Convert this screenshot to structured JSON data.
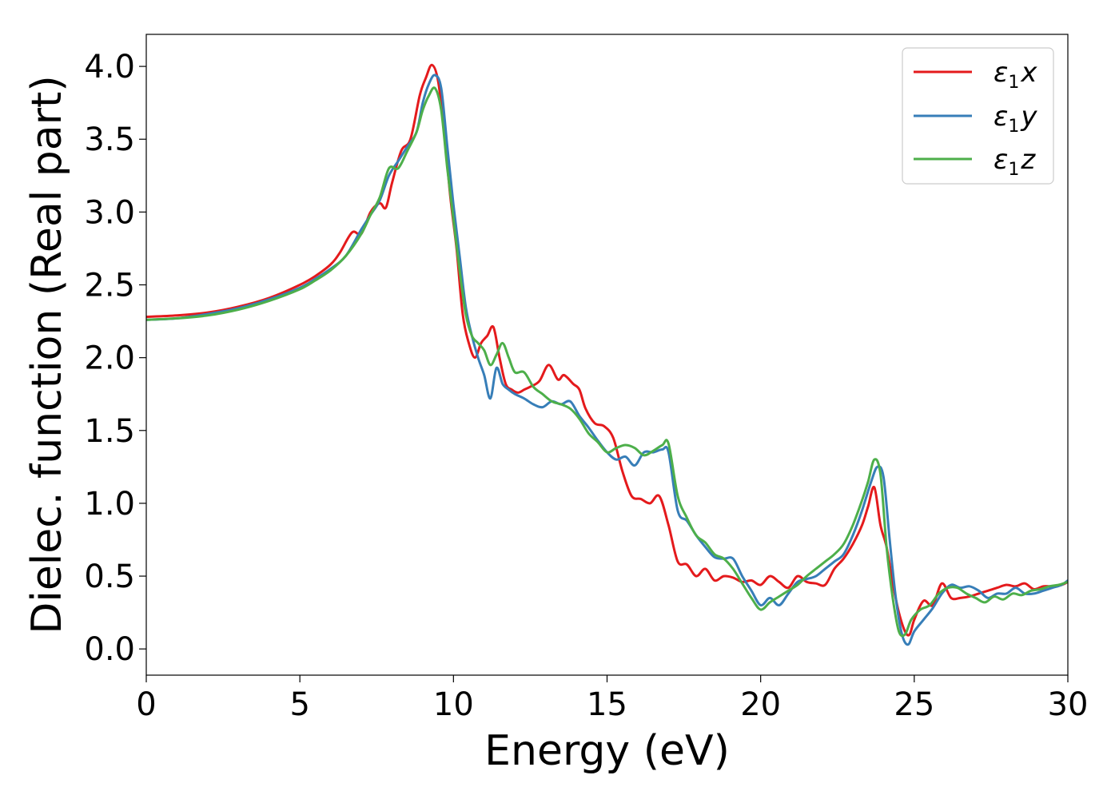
{
  "chart_data": {
    "type": "line",
    "title": "",
    "xlabel": "Energy (eV)",
    "ylabel": "Dielec. function (Real part)",
    "xlim": [
      0,
      30
    ],
    "ylim": [
      -0.18,
      4.22
    ],
    "xticks": [
      0,
      5,
      10,
      15,
      20,
      25,
      30
    ],
    "xtick_labels": [
      "0",
      "5",
      "10",
      "15",
      "20",
      "25",
      "30"
    ],
    "yticks": [
      0.0,
      0.5,
      1.0,
      1.5,
      2.0,
      2.5,
      3.0,
      3.5,
      4.0
    ],
    "ytick_labels": [
      "0.0",
      "0.5",
      "1.0",
      "1.5",
      "2.0",
      "2.5",
      "3.0",
      "3.5",
      "4.0"
    ],
    "grid": false,
    "legend_position": "top-right",
    "series": [
      {
        "name": "ε1x",
        "legend_base": "ε",
        "legend_sub": "1",
        "legend_var": "x",
        "color": "#e41a1c",
        "x": [
          0,
          1,
          2,
          3,
          4,
          5,
          5.5,
          6,
          6.3,
          6.7,
          7,
          7.3,
          7.6,
          7.8,
          8.0,
          8.3,
          8.6,
          8.9,
          9.1,
          9.3,
          9.5,
          9.7,
          9.9,
          10.1,
          10.3,
          10.5,
          10.7,
          10.9,
          11.1,
          11.3,
          11.5,
          11.7,
          11.9,
          12.1,
          12.3,
          12.5,
          12.8,
          13.1,
          13.4,
          13.6,
          13.9,
          14.1,
          14.3,
          14.6,
          14.9,
          15.2,
          15.5,
          15.8,
          16.1,
          16.4,
          16.7,
          17.0,
          17.3,
          17.6,
          17.9,
          18.2,
          18.5,
          18.8,
          19.1,
          19.4,
          19.7,
          20.0,
          20.3,
          20.6,
          20.9,
          21.2,
          21.5,
          21.8,
          22.1,
          22.4,
          22.7,
          23.0,
          23.3,
          23.5,
          23.7,
          23.9,
          24.1,
          24.3,
          24.5,
          24.7,
          24.85,
          25.0,
          25.3,
          25.6,
          25.9,
          26.2,
          26.5,
          26.8,
          27.1,
          27.4,
          27.7,
          28.0,
          28.3,
          28.6,
          28.9,
          29.2,
          29.5,
          29.8,
          30.0
        ],
        "y": [
          2.28,
          2.29,
          2.31,
          2.35,
          2.41,
          2.5,
          2.56,
          2.64,
          2.72,
          2.86,
          2.85,
          3.0,
          3.06,
          3.03,
          3.2,
          3.42,
          3.5,
          3.8,
          3.92,
          4.01,
          3.9,
          3.55,
          3.1,
          2.75,
          2.3,
          2.1,
          2.0,
          2.1,
          2.15,
          2.21,
          2.0,
          1.82,
          1.78,
          1.76,
          1.78,
          1.8,
          1.84,
          1.95,
          1.85,
          1.88,
          1.82,
          1.78,
          1.65,
          1.55,
          1.53,
          1.45,
          1.22,
          1.05,
          1.03,
          1.0,
          1.05,
          0.85,
          0.6,
          0.58,
          0.5,
          0.55,
          0.47,
          0.5,
          0.49,
          0.46,
          0.47,
          0.44,
          0.5,
          0.46,
          0.42,
          0.5,
          0.46,
          0.45,
          0.44,
          0.55,
          0.62,
          0.72,
          0.85,
          0.98,
          1.11,
          0.85,
          0.7,
          0.45,
          0.25,
          0.12,
          0.1,
          0.2,
          0.33,
          0.3,
          0.45,
          0.35,
          0.35,
          0.36,
          0.38,
          0.4,
          0.42,
          0.44,
          0.43,
          0.45,
          0.41,
          0.43,
          0.43,
          0.44,
          0.46
        ]
      },
      {
        "name": "ε1y",
        "legend_base": "ε",
        "legend_sub": "1",
        "legend_var": "y",
        "color": "#377eb8",
        "x": [
          0,
          1,
          2,
          3,
          4,
          5,
          5.5,
          6,
          6.5,
          7,
          7.3,
          7.6,
          7.9,
          8.2,
          8.5,
          8.8,
          9.0,
          9.2,
          9.4,
          9.6,
          9.8,
          10.0,
          10.2,
          10.4,
          10.6,
          10.8,
          11.0,
          11.2,
          11.4,
          11.6,
          11.8,
          12.0,
          12.3,
          12.6,
          12.9,
          13.2,
          13.5,
          13.8,
          14.1,
          14.4,
          14.7,
          15.0,
          15.3,
          15.6,
          15.9,
          16.2,
          16.5,
          16.8,
          17.0,
          17.3,
          17.6,
          17.9,
          18.2,
          18.5,
          18.8,
          19.1,
          19.4,
          19.7,
          20.0,
          20.3,
          20.6,
          20.9,
          21.2,
          21.5,
          21.8,
          22.1,
          22.4,
          22.7,
          23.0,
          23.3,
          23.6,
          23.8,
          24.0,
          24.2,
          24.4,
          24.6,
          24.8,
          25.0,
          25.3,
          25.6,
          25.9,
          26.2,
          26.5,
          26.8,
          27.1,
          27.4,
          27.7,
          28.0,
          28.3,
          28.6,
          28.9,
          29.2,
          29.5,
          29.8,
          30.0
        ],
        "y": [
          2.26,
          2.27,
          2.3,
          2.34,
          2.4,
          2.48,
          2.54,
          2.61,
          2.7,
          2.88,
          2.98,
          3.08,
          3.25,
          3.35,
          3.45,
          3.55,
          3.75,
          3.88,
          3.94,
          3.85,
          3.45,
          3.05,
          2.7,
          2.35,
          2.15,
          2.0,
          1.88,
          1.72,
          1.93,
          1.82,
          1.78,
          1.75,
          1.72,
          1.68,
          1.66,
          1.7,
          1.68,
          1.7,
          1.6,
          1.52,
          1.43,
          1.35,
          1.3,
          1.32,
          1.26,
          1.35,
          1.35,
          1.37,
          1.35,
          0.95,
          0.88,
          0.78,
          0.7,
          0.63,
          0.62,
          0.62,
          0.5,
          0.4,
          0.3,
          0.35,
          0.3,
          0.38,
          0.46,
          0.48,
          0.5,
          0.55,
          0.6,
          0.65,
          0.78,
          0.95,
          1.15,
          1.25,
          1.18,
          0.75,
          0.35,
          0.1,
          0.03,
          0.12,
          0.2,
          0.28,
          0.38,
          0.44,
          0.42,
          0.43,
          0.4,
          0.35,
          0.38,
          0.38,
          0.42,
          0.38,
          0.38,
          0.4,
          0.42,
          0.44,
          0.47
        ]
      },
      {
        "name": "ε1z",
        "legend_base": "ε",
        "legend_sub": "1",
        "legend_var": "z",
        "color": "#4daf4a",
        "x": [
          0,
          1,
          2,
          3,
          4,
          5,
          5.5,
          6,
          6.5,
          7,
          7.3,
          7.6,
          7.9,
          8.2,
          8.5,
          8.8,
          9.0,
          9.2,
          9.4,
          9.6,
          9.8,
          10.0,
          10.2,
          10.4,
          10.6,
          10.8,
          11.0,
          11.2,
          11.4,
          11.6,
          11.8,
          12.0,
          12.3,
          12.6,
          12.9,
          13.2,
          13.5,
          13.8,
          14.1,
          14.4,
          14.7,
          15.0,
          15.3,
          15.6,
          15.9,
          16.2,
          16.5,
          16.8,
          17.0,
          17.3,
          17.6,
          17.9,
          18.2,
          18.5,
          18.8,
          19.1,
          19.4,
          19.7,
          20.0,
          20.3,
          20.6,
          20.9,
          21.2,
          21.5,
          21.8,
          22.1,
          22.4,
          22.7,
          23.0,
          23.3,
          23.5,
          23.7,
          23.9,
          24.1,
          24.3,
          24.5,
          24.7,
          24.9,
          25.2,
          25.5,
          25.8,
          26.1,
          26.4,
          26.7,
          27.0,
          27.3,
          27.6,
          27.9,
          28.2,
          28.5,
          28.8,
          29.1,
          29.4,
          29.7,
          30.0
        ],
        "y": [
          2.26,
          2.27,
          2.29,
          2.33,
          2.39,
          2.47,
          2.53,
          2.6,
          2.7,
          2.85,
          2.98,
          3.1,
          3.3,
          3.3,
          3.42,
          3.55,
          3.7,
          3.8,
          3.85,
          3.7,
          3.3,
          2.95,
          2.6,
          2.3,
          2.15,
          2.1,
          2.05,
          1.95,
          2.02,
          2.1,
          2.0,
          1.9,
          1.9,
          1.8,
          1.75,
          1.7,
          1.68,
          1.65,
          1.58,
          1.48,
          1.42,
          1.35,
          1.38,
          1.4,
          1.38,
          1.33,
          1.36,
          1.4,
          1.41,
          1.05,
          0.9,
          0.78,
          0.73,
          0.65,
          0.62,
          0.55,
          0.45,
          0.35,
          0.27,
          0.32,
          0.36,
          0.4,
          0.44,
          0.5,
          0.55,
          0.6,
          0.65,
          0.72,
          0.85,
          1.02,
          1.15,
          1.3,
          1.2,
          0.7,
          0.35,
          0.12,
          0.1,
          0.2,
          0.27,
          0.3,
          0.38,
          0.42,
          0.42,
          0.38,
          0.35,
          0.32,
          0.36,
          0.34,
          0.38,
          0.37,
          0.4,
          0.41,
          0.43,
          0.44,
          0.46
        ]
      }
    ]
  }
}
